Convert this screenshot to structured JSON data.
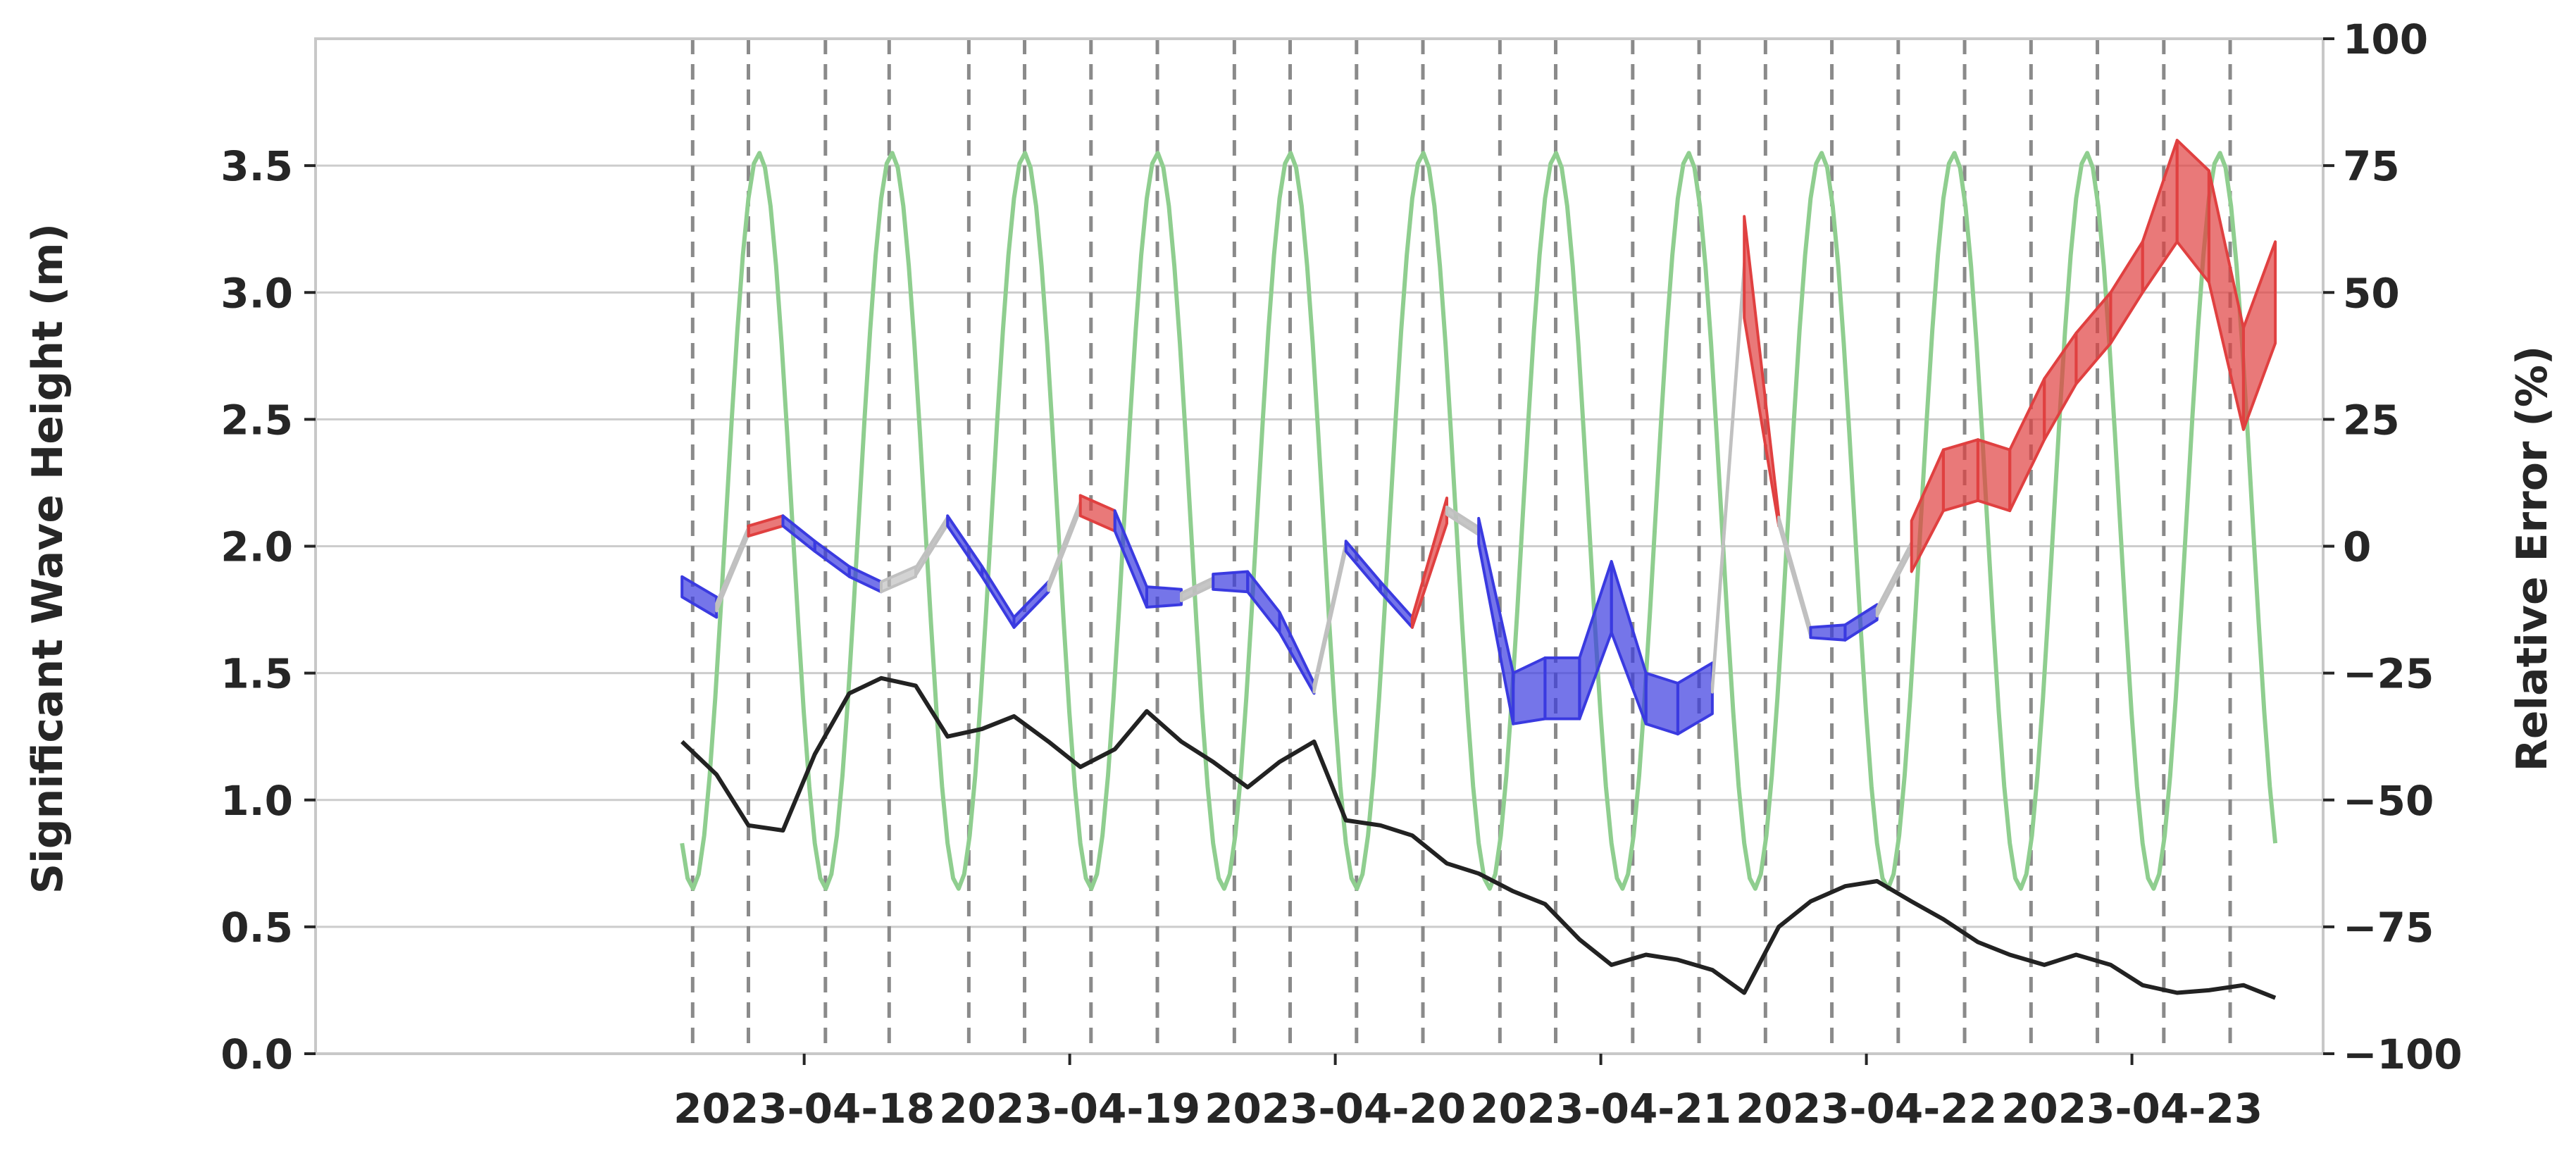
{
  "chart_data": {
    "type": "line",
    "title": "",
    "xlabel": "",
    "ylabel": "Significant Wave Height (m)",
    "y2label": "Relative Error (%)",
    "x_tick_labels": [
      "2023-04-18",
      "2023-04-19",
      "2023-04-20",
      "2023-04-21",
      "2023-04-22",
      "2023-04-23"
    ],
    "x_ticks_day": [
      2.0,
      3.0,
      4.0,
      5.0,
      6.0,
      7.0
    ],
    "xlim_day": [
      0.16,
      7.72
    ],
    "ylim": [
      0,
      4.0
    ],
    "y_ticks": [
      0.0,
      0.5,
      1.0,
      1.5,
      2.0,
      2.5,
      3.0,
      3.5
    ],
    "y2lim": [
      -100,
      100
    ],
    "y2_ticks": [
      -100,
      -75,
      -50,
      -25,
      0,
      25,
      50,
      75,
      100
    ],
    "grid": "horizontal",
    "colors": {
      "background": "#ffffff",
      "grid": "#cccccc",
      "axes": "#c8c8c8",
      "text": "#262626",
      "wave_height": "#222222",
      "tide": "#8fce8f",
      "error_positive": "#e04040",
      "error_negative": "#3a3ae0",
      "error_neutral": "#c0c0c0",
      "vline": "#8a8a8a"
    },
    "vertical_dashed_lines_day": [
      1.58,
      1.79,
      2.08,
      2.32,
      2.62,
      2.83,
      3.08,
      3.33,
      3.62,
      3.83,
      4.08,
      4.33,
      4.62,
      4.83,
      5.12,
      5.37,
      5.62,
      5.87,
      6.12,
      6.37,
      6.62,
      6.87,
      7.12,
      7.37
    ],
    "series": [
      {
        "name": "",
        "role": "wave_height",
        "axis": "left",
        "x_day": [
          1.54,
          1.67,
          1.79,
          1.92,
          2.04,
          2.17,
          2.29,
          2.42,
          2.54,
          2.67,
          2.79,
          2.92,
          3.04,
          3.17,
          3.29,
          3.42,
          3.54,
          3.67,
          3.79,
          3.92,
          4.04,
          4.17,
          4.29,
          4.42,
          4.54,
          4.67,
          4.79,
          4.92,
          5.04,
          5.17,
          5.29,
          5.42,
          5.54,
          5.67,
          5.79,
          5.92,
          6.04,
          6.17,
          6.29,
          6.42,
          6.54,
          6.67,
          6.79,
          6.92,
          7.04,
          7.17,
          7.29,
          7.42,
          7.54
        ],
        "values": [
          1.23,
          1.1,
          0.9,
          0.88,
          1.18,
          1.42,
          1.48,
          1.45,
          1.25,
          1.28,
          1.33,
          1.23,
          1.13,
          1.2,
          1.35,
          1.23,
          1.15,
          1.05,
          1.15,
          1.23,
          0.92,
          0.9,
          0.86,
          0.75,
          0.71,
          0.64,
          0.59,
          0.45,
          0.35,
          0.39,
          0.37,
          0.33,
          0.24,
          0.5,
          0.6,
          0.66,
          0.68,
          0.6,
          0.53,
          0.44,
          0.39,
          0.35,
          0.39,
          0.35,
          0.27,
          0.24,
          0.25,
          0.27,
          0.22
        ]
      },
      {
        "name": "",
        "role": "tide",
        "axis": "left",
        "model": "sinusoid",
        "amplitude": 1.45,
        "mean": 2.1,
        "period_days": 0.5,
        "phase_day": 1.83,
        "x_range_day": [
          1.54,
          7.54
        ],
        "note_unshown": ""
      },
      {
        "name": "",
        "role": "relative_error_band",
        "axis": "right",
        "x_day": [
          1.54,
          1.67,
          1.79,
          1.92,
          2.04,
          2.17,
          2.29,
          2.42,
          2.54,
          2.67,
          2.79,
          2.92,
          3.04,
          3.17,
          3.29,
          3.42,
          3.54,
          3.67,
          3.79,
          3.92,
          4.04,
          4.17,
          4.29,
          4.42,
          4.54,
          4.67,
          4.79,
          4.92,
          5.04,
          5.17,
          5.29,
          5.42,
          5.54,
          5.67,
          5.79,
          5.92,
          6.04,
          6.17,
          6.29,
          6.42,
          6.54,
          6.67,
          6.79,
          6.92,
          7.04,
          7.17,
          7.29,
          7.42,
          7.54
        ],
        "center": [
          -8,
          -12,
          3,
          5,
          0,
          -5,
          -8,
          -5,
          5,
          -5,
          -15,
          -8,
          8,
          5,
          -10,
          -10,
          -7,
          -7,
          -15,
          -28,
          0,
          -8,
          -15,
          7,
          3,
          -30,
          -28,
          -28,
          -10,
          -30,
          -32,
          -28,
          55,
          5,
          -17,
          -17,
          -13,
          0,
          13,
          15,
          13,
          27,
          37,
          45,
          55,
          70,
          63,
          33,
          50
        ],
        "width": [
          4,
          4,
          2,
          2,
          2,
          2,
          2,
          2,
          2,
          2,
          2,
          2,
          4,
          4,
          4,
          3,
          3,
          4,
          4,
          2,
          2,
          2,
          2,
          5,
          5,
          10,
          12,
          12,
          14,
          10,
          10,
          10,
          20,
          2,
          2,
          3,
          3,
          10,
          12,
          12,
          12,
          12,
          10,
          10,
          10,
          20,
          22,
          20,
          20
        ],
        "sign": [
          "neg",
          "neg",
          "pos",
          "pos",
          "neg",
          "neg",
          "neg",
          "neu",
          "neu",
          "neg",
          "neg",
          "neg",
          "pos",
          "pos",
          "neg",
          "neg",
          "neg",
          "neg",
          "neg",
          "neg",
          "pos",
          "neg",
          "neg",
          "pos",
          "pos",
          "neg",
          "neg",
          "neg",
          "neg",
          "neg",
          "neg",
          "neg",
          "pos",
          "pos",
          "neg",
          "neg",
          "neg",
          "pos",
          "pos",
          "pos",
          "pos",
          "pos",
          "pos",
          "pos",
          "pos",
          "pos",
          "pos",
          "pos",
          "pos"
        ],
        "neutral_segments": [
          [
            1.67,
            1.79
          ],
          [
            2.42,
            2.54
          ],
          [
            2.92,
            3.04
          ],
          [
            3.42,
            3.54
          ],
          [
            3.92,
            4.04
          ],
          [
            4.42,
            4.54
          ],
          [
            5.42,
            5.54
          ],
          [
            5.67,
            5.79
          ],
          [
            6.04,
            6.17
          ]
        ]
      }
    ]
  }
}
